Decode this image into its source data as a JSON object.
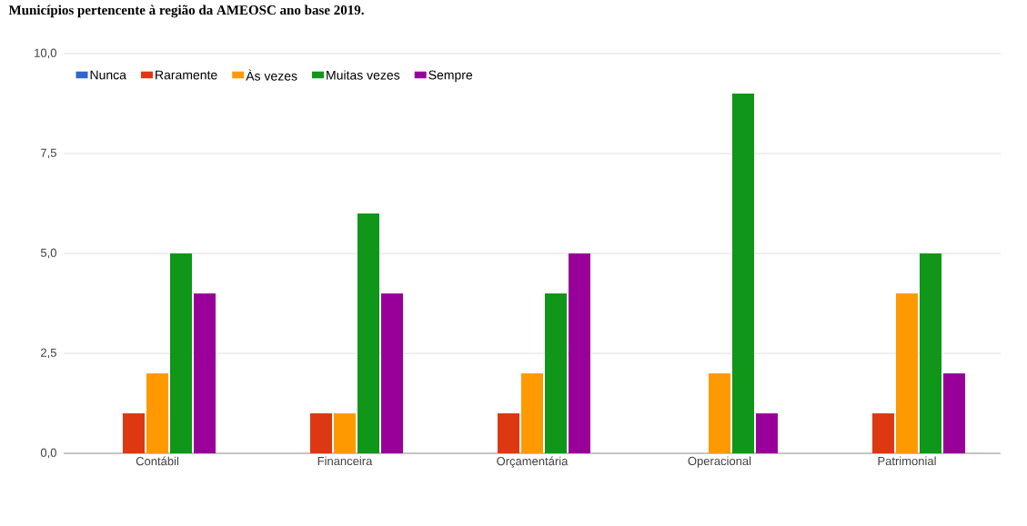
{
  "chart_data": {
    "type": "bar",
    "title": "Municípios pertencente à região da AMEOSC ano base 2019.",
    "categories": [
      "Contábil",
      "Financeira",
      "Orçamentária",
      "Operacional",
      "Patrimonial"
    ],
    "series": [
      {
        "name": "Nunca",
        "color": "#3366cc",
        "values": [
          0,
          0,
          0,
          0,
          0
        ]
      },
      {
        "name": "Raramente",
        "color": "#dc3912",
        "values": [
          1,
          1,
          1,
          0,
          1
        ]
      },
      {
        "name": "Às vezes",
        "color": "#ff9900",
        "values": [
          2,
          1,
          2,
          2,
          4
        ]
      },
      {
        "name": "Muitas vezes",
        "color": "#109618",
        "values": [
          5,
          6,
          4,
          9,
          5
        ]
      },
      {
        "name": "Sempre",
        "color": "#990099",
        "values": [
          4,
          4,
          5,
          1,
          2
        ]
      }
    ],
    "ylim": [
      0,
      10
    ],
    "yticks": [
      {
        "value": 0,
        "label": "0,0"
      },
      {
        "value": 2.5,
        "label": "2,5"
      },
      {
        "value": 5,
        "label": "5,0"
      },
      {
        "value": 7.5,
        "label": "7,5"
      },
      {
        "value": 10,
        "label": "10,0"
      }
    ],
    "grid": "y",
    "legend": "top left"
  }
}
